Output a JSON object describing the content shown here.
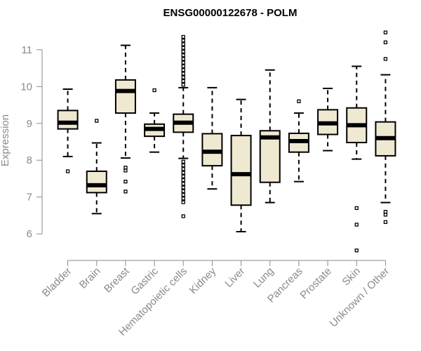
{
  "chart_data": {
    "type": "boxplot",
    "title": "ENSG00000122678 - POLM",
    "ylabel": "Expression",
    "xlabel": "",
    "ylim": [
      5.45,
      11.55
    ],
    "yticks": [
      6,
      7,
      8,
      9,
      10,
      11
    ],
    "box_fill": "#efe9d2",
    "categories": [
      {
        "name": "Bladder",
        "whisker_low": 8.1,
        "q1": 8.85,
        "median": 9.02,
        "q3": 9.35,
        "whisker_high": 9.93,
        "outliers": [
          7.7
        ]
      },
      {
        "name": "Brain",
        "whisker_low": 6.55,
        "q1": 7.12,
        "median": 7.32,
        "q3": 7.7,
        "whisker_high": 8.47,
        "outliers": [
          9.07
        ]
      },
      {
        "name": "Breast",
        "whisker_low": 8.06,
        "q1": 9.28,
        "median": 9.88,
        "q3": 10.18,
        "whisker_high": 11.12,
        "outliers": [
          7.8,
          7.72,
          7.42,
          7.15
        ]
      },
      {
        "name": "Gastric",
        "whisker_low": 8.22,
        "q1": 8.65,
        "median": 8.85,
        "q3": 8.98,
        "whisker_high": 9.28,
        "outliers": [
          9.9
        ]
      },
      {
        "name": "Hematopoietic cells",
        "whisker_low": 8.05,
        "q1": 8.76,
        "median": 9.02,
        "q3": 9.25,
        "whisker_high": 9.97,
        "outliers": [
          6.48,
          6.86,
          6.96,
          7.06,
          7.16,
          7.26,
          7.36,
          7.46,
          7.56,
          7.66,
          7.76,
          7.86,
          7.96,
          10.05,
          10.15,
          10.25,
          10.35,
          10.45,
          10.55,
          10.65,
          10.75,
          10.85,
          10.95,
          11.05,
          11.15,
          11.25,
          11.35
        ]
      },
      {
        "name": "Kidney",
        "whisker_low": 7.22,
        "q1": 7.85,
        "median": 8.23,
        "q3": 8.72,
        "whisker_high": 9.97,
        "outliers": []
      },
      {
        "name": "Liver",
        "whisker_low": 6.06,
        "q1": 6.78,
        "median": 7.62,
        "q3": 8.67,
        "whisker_high": 9.65,
        "outliers": []
      },
      {
        "name": "Lung",
        "whisker_low": 6.85,
        "q1": 7.4,
        "median": 8.62,
        "q3": 8.8,
        "whisker_high": 10.45,
        "outliers": []
      },
      {
        "name": "Pancreas",
        "whisker_low": 7.42,
        "q1": 8.22,
        "median": 8.52,
        "q3": 8.73,
        "whisker_high": 9.28,
        "outliers": [
          9.6
        ]
      },
      {
        "name": "Prostate",
        "whisker_low": 8.26,
        "q1": 8.7,
        "median": 9.0,
        "q3": 9.37,
        "whisker_high": 9.95,
        "outliers": []
      },
      {
        "name": "Skin",
        "whisker_low": 8.03,
        "q1": 8.48,
        "median": 8.95,
        "q3": 9.42,
        "whisker_high": 10.55,
        "outliers": [
          6.7,
          6.25,
          5.55
        ]
      },
      {
        "name": "Unknown / Other",
        "whisker_low": 6.85,
        "q1": 8.12,
        "median": 8.6,
        "q3": 9.04,
        "whisker_high": 10.32,
        "outliers": [
          6.6,
          6.52,
          6.32,
          10.75,
          11.2,
          11.47
        ]
      }
    ]
  }
}
